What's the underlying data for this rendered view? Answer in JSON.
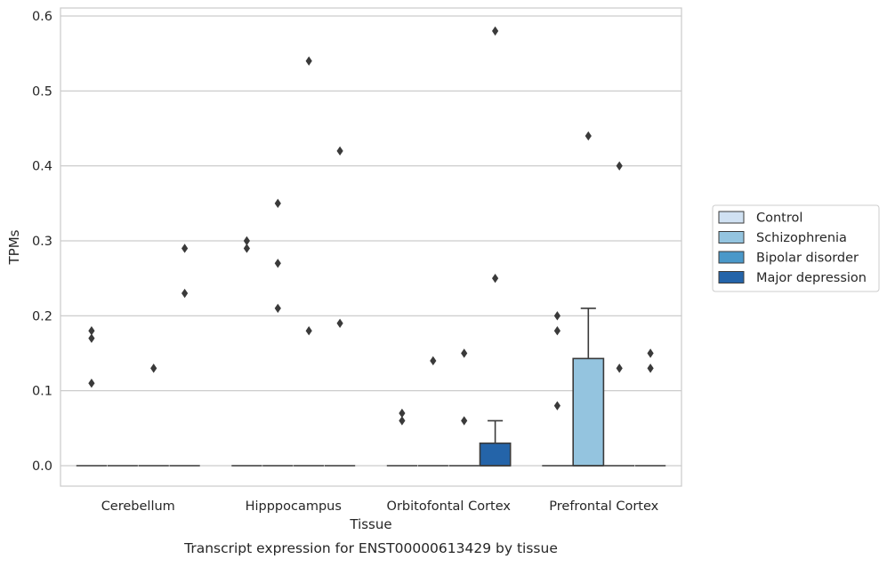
{
  "chart_data": {
    "type": "box",
    "title": "",
    "caption": "Transcript expression for ENST00000613429 by tissue",
    "xlabel": "Tissue",
    "ylabel": "TPMs",
    "ylim": [
      -0.028,
      0.612
    ],
    "yticks": [
      0.0,
      0.1,
      0.2,
      0.3,
      0.4,
      0.5,
      0.6
    ],
    "ytick_labels": [
      "0.0",
      "0.1",
      "0.2",
      "0.3",
      "0.4",
      "0.5",
      "0.6"
    ],
    "grid": "horizontal",
    "legend_position": "right",
    "categories": [
      "Cerebellum",
      "Hipppocampus",
      "Orbitofontal Cortex",
      "Prefrontal Cortex"
    ],
    "series": [
      {
        "name": "Control",
        "color": "#d0e1f2",
        "boxes": [
          {
            "q1": 0,
            "median": 0,
            "q3": 0,
            "whisker_low": 0,
            "whisker_high": 0,
            "outliers": [
              0.18,
              0.17,
              0.11
            ]
          },
          {
            "q1": 0,
            "median": 0,
            "q3": 0,
            "whisker_low": 0,
            "whisker_high": 0,
            "outliers": [
              0.3,
              0.29
            ]
          },
          {
            "q1": 0,
            "median": 0,
            "q3": 0,
            "whisker_low": 0,
            "whisker_high": 0,
            "outliers": [
              0.07,
              0.06
            ]
          },
          {
            "q1": 0,
            "median": 0,
            "q3": 0,
            "whisker_low": 0,
            "whisker_high": 0,
            "outliers": [
              0.2,
              0.18,
              0.08
            ]
          }
        ]
      },
      {
        "name": "Schizophrenia",
        "color": "#94c4df",
        "boxes": [
          {
            "q1": 0,
            "median": 0,
            "q3": 0,
            "whisker_low": 0,
            "whisker_high": 0,
            "outliers": []
          },
          {
            "q1": 0,
            "median": 0,
            "q3": 0,
            "whisker_low": 0,
            "whisker_high": 0,
            "outliers": [
              0.35,
              0.27,
              0.21
            ]
          },
          {
            "q1": 0,
            "median": 0,
            "q3": 0,
            "whisker_low": 0,
            "whisker_high": 0,
            "outliers": [
              0.14
            ]
          },
          {
            "q1": 0,
            "median": 0,
            "q3": 0.143,
            "whisker_low": 0,
            "whisker_high": 0.21,
            "outliers": [
              0.44
            ]
          }
        ]
      },
      {
        "name": "Bipolar disorder",
        "color": "#4a98c9",
        "boxes": [
          {
            "q1": 0,
            "median": 0,
            "q3": 0,
            "whisker_low": 0,
            "whisker_high": 0,
            "outliers": [
              0.13
            ]
          },
          {
            "q1": 0,
            "median": 0,
            "q3": 0,
            "whisker_low": 0,
            "whisker_high": 0,
            "outliers": [
              0.54,
              0.18
            ]
          },
          {
            "q1": 0,
            "median": 0,
            "q3": 0,
            "whisker_low": 0,
            "whisker_high": 0,
            "outliers": [
              0.15,
              0.06
            ]
          },
          {
            "q1": 0,
            "median": 0,
            "q3": 0,
            "whisker_low": 0,
            "whisker_high": 0,
            "outliers": [
              0.4,
              0.13
            ]
          }
        ]
      },
      {
        "name": "Major depression",
        "color": "#2464a9",
        "boxes": [
          {
            "q1": 0,
            "median": 0,
            "q3": 0,
            "whisker_low": 0,
            "whisker_high": 0,
            "outliers": [
              0.29,
              0.23
            ]
          },
          {
            "q1": 0,
            "median": 0,
            "q3": 0,
            "whisker_low": 0,
            "whisker_high": 0,
            "outliers": [
              0.42,
              0.19
            ]
          },
          {
            "q1": 0,
            "median": 0,
            "q3": 0.03,
            "whisker_low": 0,
            "whisker_high": 0.06,
            "outliers": [
              0.58,
              0.25
            ]
          },
          {
            "q1": 0,
            "median": 0,
            "q3": 0,
            "whisker_low": 0,
            "whisker_high": 0,
            "outliers": [
              0.15,
              0.13
            ]
          }
        ]
      }
    ]
  }
}
